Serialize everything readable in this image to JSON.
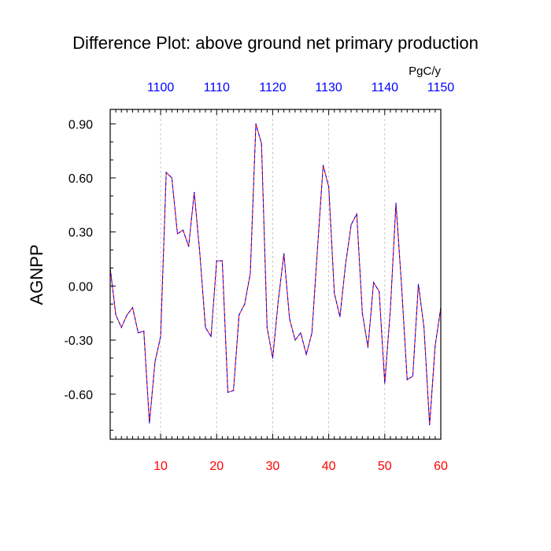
{
  "chart_data": {
    "type": "line",
    "title": "Difference Plot: above ground net primary production",
    "units": "PgC/y",
    "ylabel": "AGNPP",
    "xlabel": "",
    "xlim": [
      1,
      60
    ],
    "ylim": [
      -0.85,
      0.98
    ],
    "grid": "vertical dashed at major x ticks",
    "x_ticks_bottom": [
      10,
      20,
      30,
      40,
      50,
      60
    ],
    "x_tick_labels_bottom": [
      "10",
      "20",
      "30",
      "40",
      "50",
      "60"
    ],
    "x_tick_labels_top": [
      "1100",
      "1110",
      "1120",
      "1130",
      "1140",
      "1150"
    ],
    "y_ticks": [
      0.9,
      0.6,
      0.3,
      0.0,
      -0.3,
      -0.6
    ],
    "y_tick_labels": [
      "0.90",
      "0.60",
      "0.30",
      "0.00",
      "-0.30",
      "-0.60"
    ],
    "colors": {
      "line_a": "#ff0000",
      "line_b": "#0000ff",
      "bottom_tick_labels": "#ff0000",
      "top_tick_labels": "#0000ff",
      "grid": "#bbbbbb"
    },
    "x": [
      1,
      2,
      3,
      4,
      5,
      6,
      7,
      8,
      9,
      10,
      11,
      12,
      13,
      14,
      15,
      16,
      17,
      18,
      19,
      20,
      21,
      22,
      23,
      24,
      25,
      26,
      27,
      28,
      29,
      30,
      31,
      32,
      33,
      34,
      35,
      36,
      37,
      38,
      39,
      40,
      41,
      42,
      43,
      44,
      45,
      46,
      47,
      48,
      49,
      50,
      51,
      52,
      53,
      54,
      55,
      56,
      57,
      58,
      59,
      60
    ],
    "series": [
      {
        "values": [
          0.1,
          -0.16,
          -0.23,
          -0.16,
          -0.12,
          -0.26,
          -0.25,
          -0.76,
          -0.42,
          -0.28,
          0.63,
          0.6,
          0.29,
          0.31,
          0.22,
          0.52,
          0.18,
          -0.23,
          -0.28,
          0.14,
          0.14,
          -0.59,
          -0.58,
          -0.16,
          -0.1,
          0.07,
          0.9,
          0.79,
          -0.23,
          -0.4,
          -0.08,
          0.18,
          -0.18,
          -0.3,
          -0.26,
          -0.38,
          -0.26,
          0.21,
          0.67,
          0.55,
          -0.04,
          -0.17,
          0.12,
          0.34,
          0.4,
          -0.15,
          -0.34,
          0.02,
          -0.03,
          -0.54,
          -0.13,
          0.46,
          0.0,
          -0.52,
          -0.5,
          0.01,
          -0.23,
          -0.77,
          -0.33,
          -0.12
        ]
      }
    ]
  }
}
